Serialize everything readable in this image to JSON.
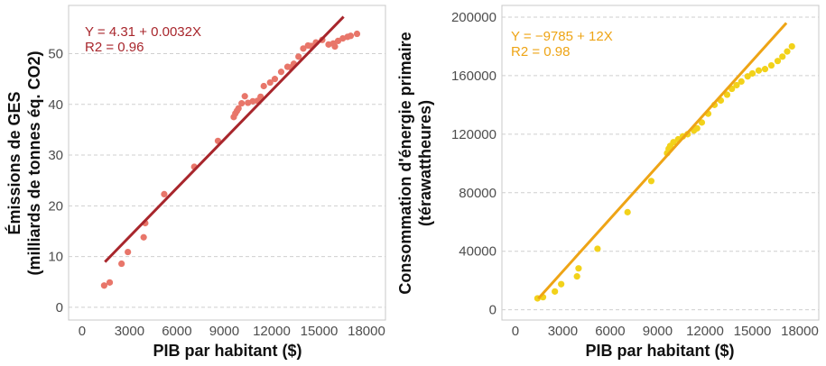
{
  "chart_data": [
    {
      "type": "scatter",
      "xlabel": "PIB par habitant ($)",
      "ylabel": [
        "Émissions de GES",
        "(milliards de tonnes éq. CO2)"
      ],
      "xticks": [
        0,
        3000,
        6000,
        9000,
        12000,
        15000,
        18000
      ],
      "yticks": [
        0,
        10,
        20,
        30,
        40,
        50
      ],
      "tick_labels_x": [
        "0",
        "3000",
        "6000",
        "9000",
        "12000",
        "15000",
        "18000"
      ],
      "tick_labels_y": [
        "0",
        "10",
        "20",
        "30",
        "40",
        "50"
      ],
      "xlim": [
        -850,
        19200
      ],
      "ylim": [
        -2.5,
        59.5
      ],
      "grid": "horizontal dashed",
      "point_color": "#e8766a",
      "line_color": "#a8262c",
      "equation": "Y = 4.31 + 0.0032X",
      "r2": "R2 = 0.96",
      "fit": {
        "intercept": 4.31,
        "slope": 0.0032,
        "x_range": [
          1450,
          16550
        ]
      },
      "points": [
        [
          1400,
          4.3
        ],
        [
          1750,
          4.9
        ],
        [
          2500,
          8.6
        ],
        [
          2900,
          10.9
        ],
        [
          3900,
          13.8
        ],
        [
          4000,
          16.6
        ],
        [
          5200,
          22.3
        ],
        [
          7100,
          27.7
        ],
        [
          8600,
          32.8
        ],
        [
          9600,
          37.5
        ],
        [
          9700,
          38.2
        ],
        [
          9800,
          38.7
        ],
        [
          9900,
          39.2
        ],
        [
          10100,
          40.2
        ],
        [
          10300,
          41.6
        ],
        [
          10500,
          40.3
        ],
        [
          10800,
          40.6
        ],
        [
          11100,
          40.7
        ],
        [
          11300,
          41.5
        ],
        [
          11500,
          43.6
        ],
        [
          11900,
          44.3
        ],
        [
          12200,
          45.0
        ],
        [
          12600,
          46.4
        ],
        [
          13000,
          47.4
        ],
        [
          13200,
          47.3
        ],
        [
          13400,
          48.0
        ],
        [
          13700,
          49.4
        ],
        [
          14000,
          51.0
        ],
        [
          14300,
          51.6
        ],
        [
          14500,
          51.5
        ],
        [
          14800,
          52.2
        ],
        [
          15200,
          52.7
        ],
        [
          15600,
          51.8
        ],
        [
          15900,
          52.0
        ],
        [
          16000,
          51.4
        ],
        [
          16200,
          52.5
        ],
        [
          16500,
          53.0
        ],
        [
          16800,
          53.3
        ],
        [
          17000,
          53.5
        ],
        [
          17400,
          53.9
        ]
      ]
    },
    {
      "type": "scatter",
      "xlabel": "PIB par habitant ($)",
      "ylabel": [
        "Consommation d'énergie primaire",
        "(térawattheures)"
      ],
      "xticks": [
        0,
        3000,
        6000,
        9000,
        12000,
        15000,
        18000
      ],
      "yticks": [
        0,
        40000,
        80000,
        120000,
        160000,
        200000
      ],
      "tick_labels_x": [
        "0",
        "3000",
        "6000",
        "9000",
        "12000",
        "15000",
        "18000"
      ],
      "tick_labels_y": [
        "0",
        "40000",
        "80000",
        "120000",
        "160000",
        "200000"
      ],
      "xlim": [
        -850,
        19200
      ],
      "ylim": [
        -7000,
        208000
      ],
      "grid": "horizontal dashed",
      "point_color": "#f2d21a",
      "line_color": "#eea415",
      "equation": "Y = −9785 + 12X",
      "r2": "R2 = 0.98",
      "fit": {
        "intercept": -9785,
        "slope": 12,
        "x_range": [
          1450,
          17150
        ]
      },
      "points": [
        [
          1400,
          7800
        ],
        [
          1750,
          8600
        ],
        [
          2500,
          12500
        ],
        [
          2900,
          17500
        ],
        [
          3900,
          22800
        ],
        [
          4000,
          28300
        ],
        [
          5200,
          41700
        ],
        [
          7100,
          66700
        ],
        [
          8600,
          88000
        ],
        [
          9600,
          107000
        ],
        [
          9700,
          110000
        ],
        [
          9800,
          112000
        ],
        [
          10000,
          114500
        ],
        [
          10300,
          116500
        ],
        [
          10600,
          118500
        ],
        [
          10900,
          120000
        ],
        [
          11300,
          122500
        ],
        [
          11500,
          124000
        ],
        [
          11800,
          128000
        ],
        [
          12200,
          134000
        ],
        [
          12600,
          140000
        ],
        [
          13000,
          143000
        ],
        [
          13400,
          147000
        ],
        [
          13700,
          151000
        ],
        [
          14000,
          153500
        ],
        [
          14300,
          156000
        ],
        [
          14700,
          159500
        ],
        [
          15000,
          161500
        ],
        [
          15400,
          163500
        ],
        [
          15800,
          164500
        ],
        [
          16200,
          167000
        ],
        [
          16600,
          170000
        ],
        [
          16900,
          173000
        ],
        [
          17200,
          176500
        ],
        [
          17500,
          180000
        ]
      ]
    }
  ]
}
